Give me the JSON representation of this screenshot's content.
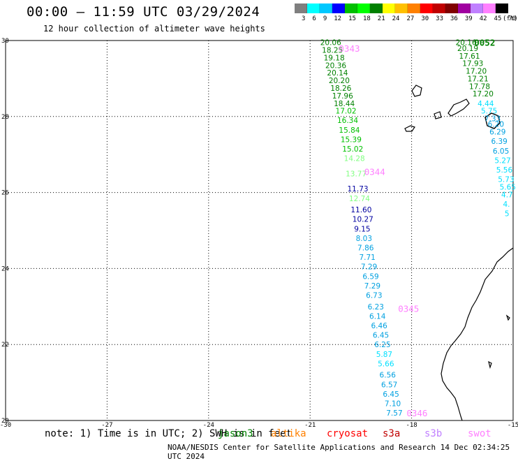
{
  "header": {
    "title": "00:00 – 11:59 UTC 03/29/2024",
    "subtitle": "12 hour collection of altimeter wave heights"
  },
  "colorbar": {
    "labels": [
      "3",
      "6",
      "9",
      "12",
      "15",
      "18",
      "21",
      "24",
      "27",
      "30",
      "33",
      "36",
      "39",
      "42",
      "45",
      "70"
    ],
    "unit": "(ft)",
    "colors": [
      "#7f7f7f",
      "#00ffff",
      "#00c8ff",
      "#0000ff",
      "#00c000",
      "#00ff00",
      "#008000",
      "#ffff00",
      "#ffc000",
      "#ff8000",
      "#ff0000",
      "#c00000",
      "#800000",
      "#a000a0",
      "#c080ff",
      "#ff80ff",
      "#000000"
    ]
  },
  "axes": {
    "lat_labels": [
      "30",
      "28",
      "26",
      "24",
      "22",
      "20"
    ],
    "lon_labels": [
      "-30",
      "-27",
      "-24",
      "-21",
      "-18",
      "-15"
    ],
    "lat_values": [
      30,
      28,
      26,
      24,
      22,
      20
    ],
    "lon_values": [
      -30,
      -27,
      -24,
      -21,
      -18,
      -15
    ]
  },
  "pass_times": [
    {
      "label": "0343",
      "lon": -20.15,
      "lat": 29.8,
      "color": "#ff80ff"
    },
    {
      "label": "0344",
      "lon": -19.4,
      "lat": 26.55,
      "color": "#ff80ff"
    },
    {
      "label": "0345",
      "lon": -18.4,
      "lat": 22.95,
      "color": "#ff80ff"
    },
    {
      "label": "0346",
      "lon": -18.15,
      "lat": 20.2,
      "color": "#ff80ff"
    },
    {
      "label": "0052",
      "lon": -16.15,
      "lat": 29.95,
      "color": "#008000"
    }
  ],
  "track_a": [
    {
      "v": "20.06",
      "lon": -20.7,
      "lat": 29.95,
      "color": "#008000"
    },
    {
      "v": "18.25",
      "lon": -20.65,
      "lat": 29.75,
      "color": "#008000"
    },
    {
      "v": "19.18",
      "lon": -20.6,
      "lat": 29.55,
      "color": "#008000"
    },
    {
      "v": "20.36",
      "lon": -20.55,
      "lat": 29.35,
      "color": "#008000"
    },
    {
      "v": "20.14",
      "lon": -20.5,
      "lat": 29.15,
      "color": "#008000"
    },
    {
      "v": "20.20",
      "lon": -20.45,
      "lat": 28.95,
      "color": "#008000"
    },
    {
      "v": "18.26",
      "lon": -20.4,
      "lat": 28.75,
      "color": "#008000"
    },
    {
      "v": "17.96",
      "lon": -20.35,
      "lat": 28.55,
      "color": "#008000"
    },
    {
      "v": "18.44",
      "lon": -20.3,
      "lat": 28.35,
      "color": "#008000"
    },
    {
      "v": "17.02",
      "lon": -20.25,
      "lat": 28.15,
      "color": "#00c000"
    },
    {
      "v": "16.34",
      "lon": -20.2,
      "lat": 27.9,
      "color": "#00c000"
    },
    {
      "v": "15.84",
      "lon": -20.15,
      "lat": 27.65,
      "color": "#00c000"
    },
    {
      "v": "15.39",
      "lon": -20.1,
      "lat": 27.4,
      "color": "#00c000"
    },
    {
      "v": "15.02",
      "lon": -20.05,
      "lat": 27.15,
      "color": "#00c000"
    },
    {
      "v": "14.28",
      "lon": -20.0,
      "lat": 26.9,
      "color": "#80ff80"
    },
    {
      "v": "13.77",
      "lon": -19.95,
      "lat": 26.5,
      "color": "#80ff80"
    },
    {
      "v": "11.73",
      "lon": -19.9,
      "lat": 26.1,
      "color": "#0000a0"
    },
    {
      "v": "12.74",
      "lon": -19.85,
      "lat": 25.85,
      "color": "#80ff80"
    },
    {
      "v": "11.60",
      "lon": -19.8,
      "lat": 25.55,
      "color": "#0000a0"
    },
    {
      "v": "10.27",
      "lon": -19.75,
      "lat": 25.3,
      "color": "#0000a0"
    },
    {
      "v": "9.15",
      "lon": -19.7,
      "lat": 25.05,
      "color": "#0000a0"
    },
    {
      "v": "8.03",
      "lon": -19.65,
      "lat": 24.8,
      "color": "#00a0e0"
    },
    {
      "v": "7.86",
      "lon": -19.6,
      "lat": 24.55,
      "color": "#00a0e0"
    },
    {
      "v": "7.71",
      "lon": -19.55,
      "lat": 24.3,
      "color": "#00a0e0"
    },
    {
      "v": "7.29",
      "lon": -19.5,
      "lat": 24.05,
      "color": "#00a0e0"
    },
    {
      "v": "6.59",
      "lon": -19.45,
      "lat": 23.8,
      "color": "#00a0e0"
    },
    {
      "v": "7.29",
      "lon": -19.4,
      "lat": 23.55,
      "color": "#00a0e0"
    },
    {
      "v": "6.73",
      "lon": -19.35,
      "lat": 23.3,
      "color": "#00a0e0"
    },
    {
      "v": "6.23",
      "lon": -19.3,
      "lat": 23.0,
      "color": "#00a0e0"
    },
    {
      "v": "6.14",
      "lon": -19.25,
      "lat": 22.75,
      "color": "#00a0e0"
    },
    {
      "v": "6.46",
      "lon": -19.2,
      "lat": 22.5,
      "color": "#00a0e0"
    },
    {
      "v": "6.45",
      "lon": -19.15,
      "lat": 22.25,
      "color": "#00a0e0"
    },
    {
      "v": "6.25",
      "lon": -19.1,
      "lat": 22.0,
      "color": "#00a0e0"
    },
    {
      "v": "5.87",
      "lon": -19.05,
      "lat": 21.75,
      "color": "#00e0ff"
    },
    {
      "v": "5.66",
      "lon": -19.0,
      "lat": 21.5,
      "color": "#00e0ff"
    },
    {
      "v": "6.56",
      "lon": -18.95,
      "lat": 21.2,
      "color": "#00a0e0"
    },
    {
      "v": "6.57",
      "lon": -18.9,
      "lat": 20.95,
      "color": "#00a0e0"
    },
    {
      "v": "6.45",
      "lon": -18.85,
      "lat": 20.7,
      "color": "#00a0e0"
    },
    {
      "v": "7.10",
      "lon": -18.8,
      "lat": 20.45,
      "color": "#00a0e0"
    },
    {
      "v": "7.57",
      "lon": -18.75,
      "lat": 20.2,
      "color": "#00a0e0"
    }
  ],
  "track_b": [
    {
      "v": "20.16",
      "lon": -16.7,
      "lat": 29.95,
      "color": "#008000"
    },
    {
      "v": "20.19",
      "lon": -16.65,
      "lat": 29.8,
      "color": "#008000"
    },
    {
      "v": "17.61",
      "lon": -16.6,
      "lat": 29.6,
      "color": "#008000"
    },
    {
      "v": "17.93",
      "lon": -16.5,
      "lat": 29.4,
      "color": "#008000"
    },
    {
      "v": "17.20",
      "lon": -16.4,
      "lat": 29.2,
      "color": "#008000"
    },
    {
      "v": "17.21",
      "lon": -16.35,
      "lat": 29.0,
      "color": "#008000"
    },
    {
      "v": "17.78",
      "lon": -16.3,
      "lat": 28.8,
      "color": "#008000"
    },
    {
      "v": "17.20",
      "lon": -16.2,
      "lat": 28.6,
      "color": "#008000"
    },
    {
      "v": "4.44",
      "lon": -16.05,
      "lat": 28.35,
      "color": "#00e0ff"
    },
    {
      "v": "5.75",
      "lon": -15.95,
      "lat": 28.15,
      "color": "#00e0ff"
    },
    {
      "v": "7.33",
      "lon": -15.85,
      "lat": 27.95,
      "color": "#00a0e0"
    },
    {
      "v": "6.20",
      "lon": -15.75,
      "lat": 27.8,
      "color": "#00a0e0"
    },
    {
      "v": "6.29",
      "lon": -15.7,
      "lat": 27.6,
      "color": "#00a0e0"
    },
    {
      "v": "6.39",
      "lon": -15.65,
      "lat": 27.35,
      "color": "#00a0e0"
    },
    {
      "v": "6.05",
      "lon": -15.6,
      "lat": 27.1,
      "color": "#00a0e0"
    },
    {
      "v": "5.27",
      "lon": -15.55,
      "lat": 26.85,
      "color": "#00e0ff"
    },
    {
      "v": "5.56",
      "lon": -15.5,
      "lat": 26.6,
      "color": "#00e0ff"
    },
    {
      "v": "5.73",
      "lon": -15.45,
      "lat": 26.35,
      "color": "#00e0ff"
    },
    {
      "v": "5.65",
      "lon": -15.4,
      "lat": 26.15,
      "color": "#00e0ff"
    },
    {
      "v": "4.7",
      "lon": -15.35,
      "lat": 25.95,
      "color": "#00e0ff"
    },
    {
      "v": "4.",
      "lon": -15.3,
      "lat": 25.7,
      "color": "#00e0ff"
    },
    {
      "v": "5",
      "lon": -15.25,
      "lat": 25.45,
      "color": "#00e0ff"
    }
  ],
  "footer": {
    "note": "note: 1) Time is in UTC; 2) SWH is in feet",
    "satellites": [
      {
        "name": "jason3",
        "color": "#008000"
      },
      {
        "name": "altika",
        "color": "#ff8000"
      },
      {
        "name": "cryosat",
        "color": "#ff0000"
      },
      {
        "name": "s3a",
        "color": "#c00000"
      },
      {
        "name": "s3b",
        "color": "#c080ff"
      },
      {
        "name": "swot",
        "color": "#ff80ff"
      }
    ],
    "credit": "NOAA/NESDIS Center for Satellite Applications and Research    14 Dec 02:34:25 UTC 2024"
  }
}
